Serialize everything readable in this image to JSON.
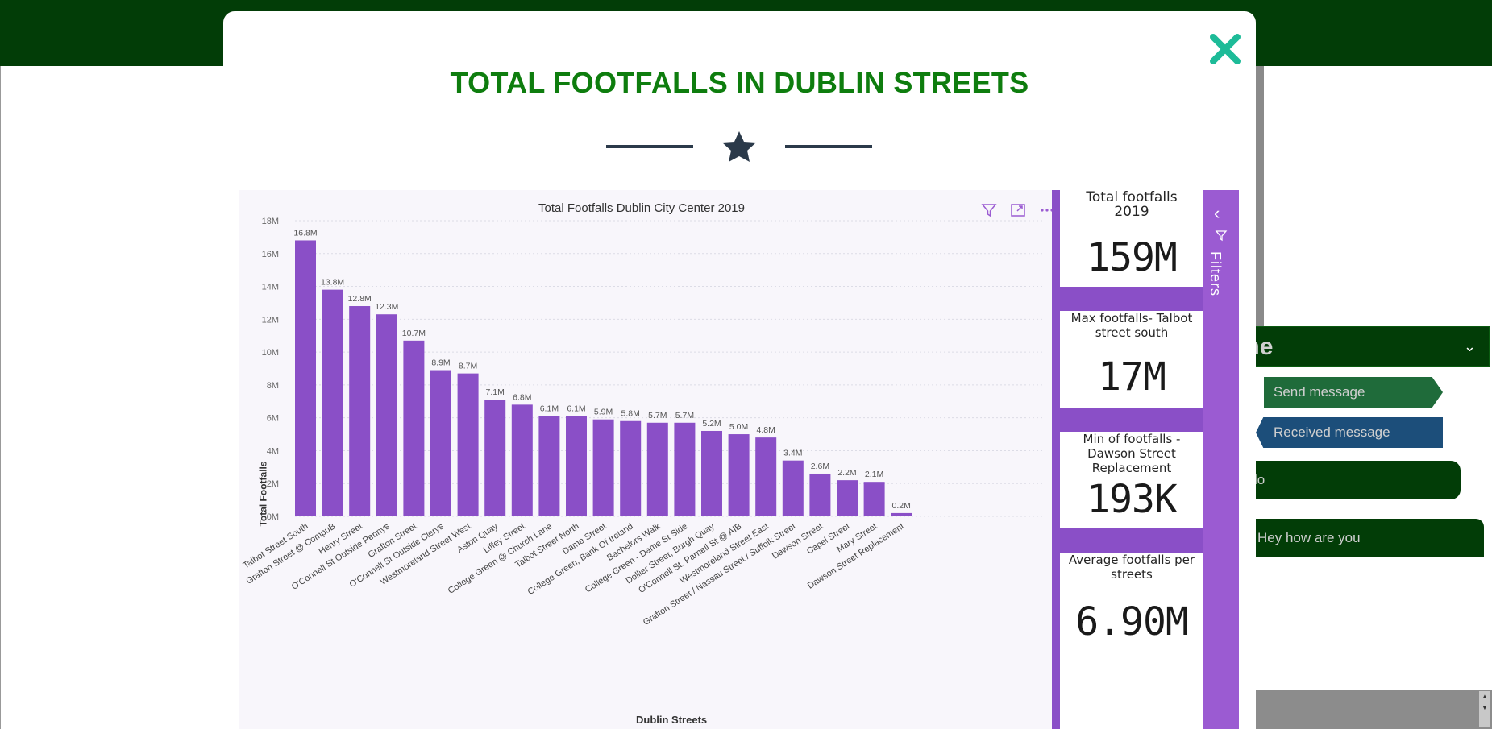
{
  "chat": {
    "header_title": "k me",
    "send_message": "Send message",
    "received_message": "Received message",
    "hello_message": "lo",
    "hey_message": "Hey how are you"
  },
  "modal": {
    "title": "TOTAL FOOTFALLS IN DUBLIN STREETS"
  },
  "kpis": [
    {
      "label": "Total footfalls 2019",
      "value": "159M"
    },
    {
      "label": "Max footfalls- Talbot street south",
      "value": "17M"
    },
    {
      "label": "Min of footfalls - Dawson Street Replacement",
      "value": "193K"
    },
    {
      "label": "Average footfalls per streets",
      "value": "6.90M"
    }
  ],
  "filters_label": "Filters",
  "colors": {
    "bar": "#8a4fc7",
    "title": "#0e7d0e",
    "topbar": "#023d07",
    "close": "#1dbb98"
  },
  "chart_data": {
    "type": "bar",
    "title": "Total Footfalls Dublin City Center 2019",
    "xlabel": "Dublin Streets",
    "ylabel": "Total Footfalls",
    "ylim": [
      0,
      18
    ],
    "yticks": [
      "0M",
      "2M",
      "4M",
      "6M",
      "8M",
      "10M",
      "12M",
      "14M",
      "16M",
      "18M"
    ],
    "categories": [
      "Talbot Street South",
      "Grafton Street @ CompuB",
      "Henry Street",
      "O'Connell St Outside Pennys",
      "Grafton Street",
      "O'Connell St Outside Clerys",
      "Westmoreland Street West",
      "Aston Quay",
      "Liffey Street",
      "College Green @ Church Lane",
      "Talbot Street North",
      "Dame Street",
      "College Green, Bank Of Ireland",
      "Bachelors Walk",
      "College Green - Dame St Side",
      "Dollier Street, Burgh Quay",
      "O'Connell St, Parnell St @ AIB",
      "Westmoreland Street East",
      "Grafton Street / Nassau Street / Suffolk Street",
      "Dawson Street",
      "Capel Street",
      "Mary Street",
      "Dawson Street Replacement"
    ],
    "values": [
      16.8,
      13.8,
      12.8,
      12.3,
      10.7,
      8.9,
      8.7,
      7.1,
      6.8,
      6.1,
      6.1,
      5.9,
      5.8,
      5.7,
      5.7,
      5.2,
      5.0,
      4.8,
      3.4,
      2.6,
      2.2,
      2.1,
      0.2
    ],
    "data_labels": [
      "16.8M",
      "13.8M",
      "12.8M",
      "12.3M",
      "10.7M",
      "8.9M",
      "8.7M",
      "7.1M",
      "6.8M",
      "6.1M",
      "6.1M",
      "5.9M",
      "5.8M",
      "5.7M",
      "5.7M",
      "5.2M",
      "5.0M",
      "4.8M",
      "3.4M",
      "2.6M",
      "2.2M",
      "2.1M",
      "0.2M"
    ]
  }
}
